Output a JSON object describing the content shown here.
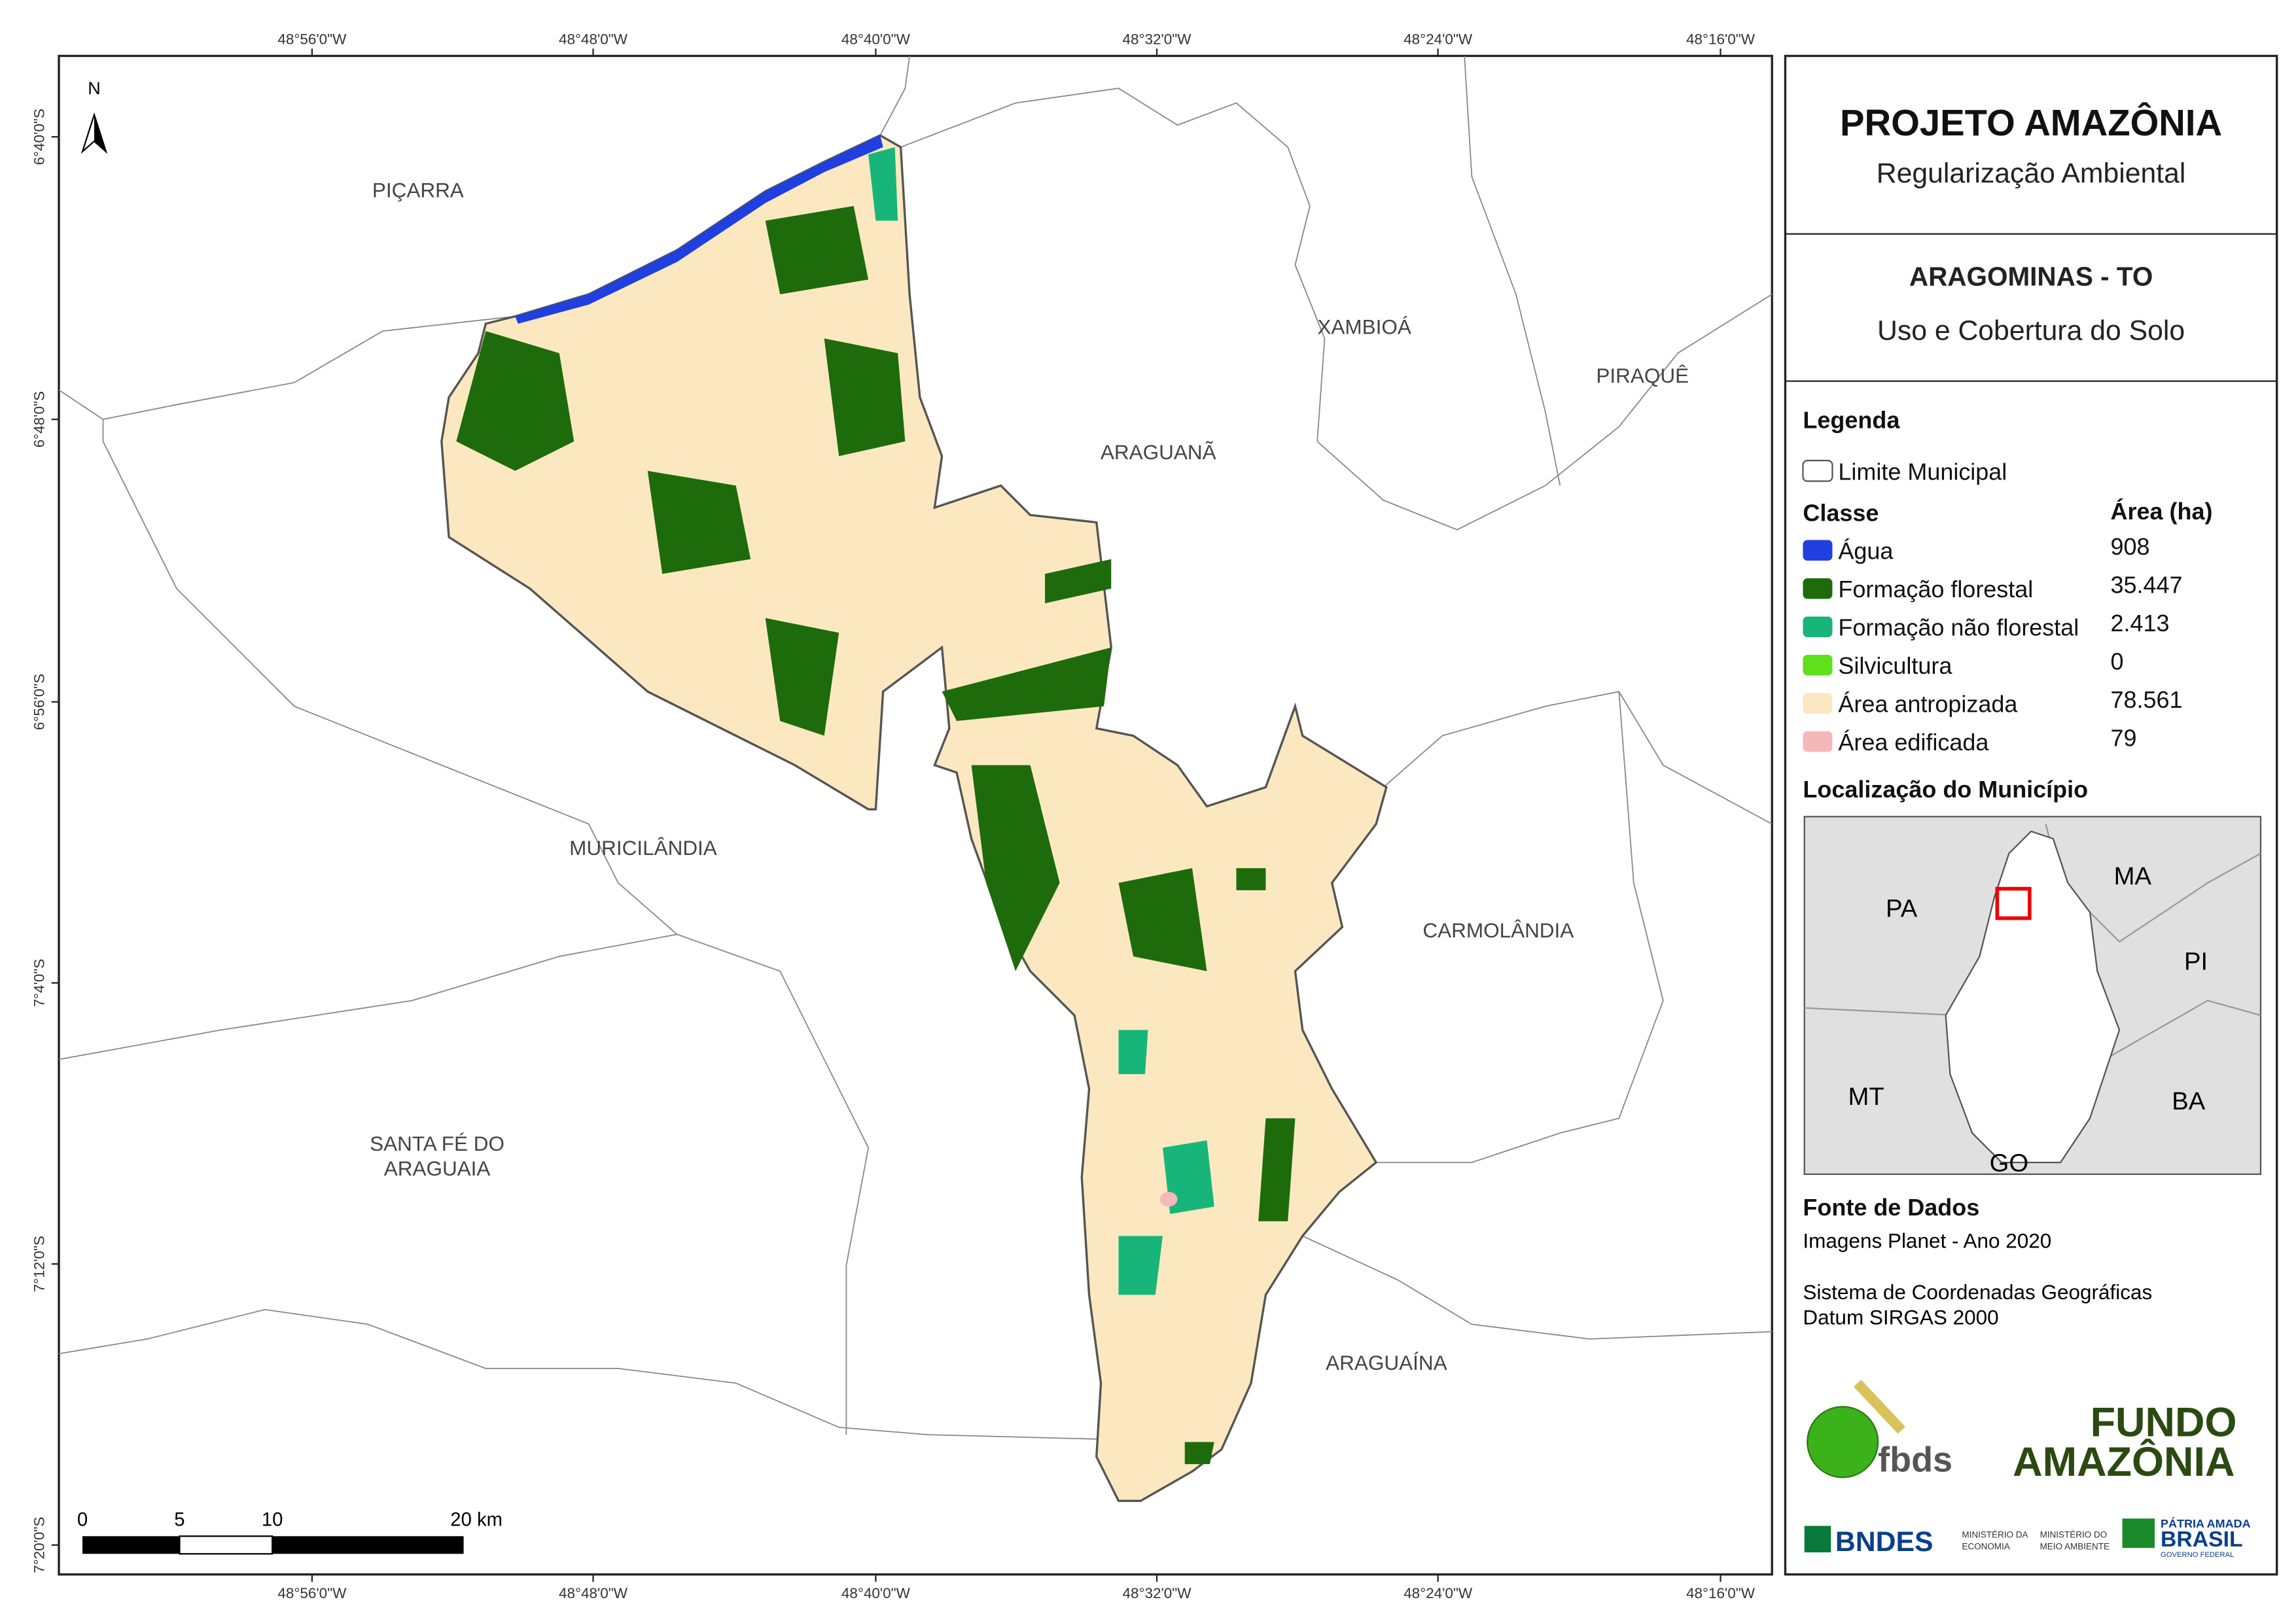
{
  "map": {
    "top_labels": [
      "48°56'0\"W",
      "48°48'0\"W",
      "48°40'0\"W",
      "48°32'0\"W",
      "48°24'0\"W",
      "48°16'0\"W"
    ],
    "bottom_labels": [
      "48°56'0\"W",
      "48°48'0\"W",
      "48°40'0\"W",
      "48°32'0\"W",
      "48°24'0\"W",
      "48°16'0\"W"
    ],
    "left_labels": [
      "6°40'0\"S",
      "6°48'0\"S",
      "6°56'0\"S",
      "7°4'0\"S",
      "7°12'0\"S",
      "7°20'0\"S"
    ],
    "north": "N",
    "places": [
      "PIÇARRA",
      "XAMBIOÁ",
      "PIRAQUÊ",
      "ARAGUANÃ",
      "MURICILÂNDIA",
      "CARMOLÂNDIA",
      "SANTA FÉ DO",
      "ARAGUAIA",
      "ARAGUAÍNA"
    ],
    "scale": [
      "0",
      "5",
      "10",
      "20 km"
    ]
  },
  "panel": {
    "title": "PROJETO AMAZÔNIA",
    "subtitle": "Regularização Ambiental",
    "municipality": "ARAGOMINAS - TO",
    "theme": "Uso e Cobertura do Solo",
    "legend_title": "Legenda",
    "boundary_label": "Limite Municipal",
    "class_header": "Classe",
    "area_header": "Área (ha)",
    "classes": [
      {
        "name": "Água",
        "area": "908",
        "color": "#1f3fe0"
      },
      {
        "name": "Formação florestal",
        "area": "35.447",
        "color": "#1e6b0c"
      },
      {
        "name": "Formação não florestal",
        "area": "2.413",
        "color": "#18b57a"
      },
      {
        "name": "Silvicultura",
        "area": "0",
        "color": "#5fe01a"
      },
      {
        "name": "Área antropizada",
        "area": "78.561",
        "color": "#fbe8c0"
      },
      {
        "name": "Área edificada",
        "area": "79",
        "color": "#f5b8b8"
      }
    ],
    "location_title": "Localização do Município",
    "location_labels": [
      "PA",
      "MA",
      "PI",
      "MT",
      "BA",
      "GO"
    ],
    "source_title": "Fonte de Dados",
    "source_lines": [
      "Imagens Planet - Ano 2020",
      "Sistema de Coordenadas Geográficas",
      "Datum SIRGAS 2000"
    ],
    "logos": [
      "fbds",
      "FUNDO",
      "AMAZÔNIA",
      "BNDES",
      "MINISTÉRIO DA",
      "ECONOMIA",
      "MINISTÉRIO DO",
      "MEIO AMBIENTE",
      "PÁTRIA AMADA",
      "BRASIL",
      "GOVERNO FEDERAL"
    ]
  }
}
